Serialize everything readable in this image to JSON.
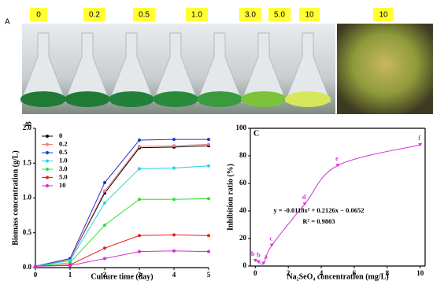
{
  "photo_panel": {
    "label": "A",
    "flask_labels": [
      "0",
      "0.2",
      "0.5",
      "1.0",
      "3.0",
      "5.0",
      "10",
      "10"
    ]
  },
  "chart_data": [
    {
      "type": "line",
      "panel_label": "B",
      "x_label": "Culture time (day)",
      "y_label": "Biomass concentration (g/L)",
      "x": [
        0,
        1,
        2,
        3,
        4,
        5
      ],
      "xlim": [
        0,
        5
      ],
      "xticks": [
        0,
        1,
        2,
        3,
        4,
        5
      ],
      "ylim": [
        0,
        2
      ],
      "yticks": [
        {
          "value": 0,
          "label": "0.0"
        },
        {
          "value": 0.5,
          "label": "0.5"
        },
        {
          "value": 1,
          "label": "1.0"
        },
        {
          "value": 1.5,
          "label": "1.5"
        },
        {
          "value": 2,
          "label": "2.0"
        }
      ],
      "series": [
        {
          "name": "0",
          "color": "#000000",
          "values": [
            0.02,
            0.12,
            1.07,
            1.72,
            1.73,
            1.75
          ]
        },
        {
          "name": "0.2",
          "color": "#f08080",
          "values": [
            0.02,
            0.12,
            1.1,
            1.74,
            1.75,
            1.77
          ]
        },
        {
          "name": "0.5",
          "color": "#2035d0",
          "values": [
            0.02,
            0.13,
            1.22,
            1.83,
            1.84,
            1.84
          ]
        },
        {
          "name": "1.0",
          "color": "#22d3e6",
          "values": [
            0.02,
            0.1,
            0.93,
            1.42,
            1.43,
            1.46
          ]
        },
        {
          "name": "3.0",
          "color": "#2ee02e",
          "values": [
            0.02,
            0.07,
            0.61,
            0.98,
            0.98,
            0.99
          ]
        },
        {
          "name": "5.0",
          "color": "#e8201c",
          "values": [
            0.02,
            0.04,
            0.28,
            0.46,
            0.47,
            0.46
          ]
        },
        {
          "name": "10",
          "color": "#d22ed2",
          "values": [
            0.02,
            0.03,
            0.13,
            0.23,
            0.24,
            0.23
          ]
        }
      ]
    },
    {
      "type": "scatter",
      "panel_label": "C",
      "x_label": "Na₂SeO₄ concentration (mg/L)",
      "y_label": "Inhibition ratio (%)",
      "x": [
        0,
        0.2,
        0.5,
        1.0,
        3.0,
        5.0,
        10
      ],
      "values": [
        4,
        3,
        2,
        15,
        45,
        73,
        88
      ],
      "point_labels": [
        "b",
        "b",
        "a",
        "c",
        "d",
        "e",
        "f"
      ],
      "color": "#d633d6",
      "xlim": [
        -0.3,
        10.3
      ],
      "xticks": [
        0,
        2,
        4,
        6,
        8,
        10
      ],
      "ylim": [
        0,
        100
      ],
      "yticks": [
        0,
        20,
        40,
        60,
        80,
        100
      ],
      "equation": "y = -0.0118x² + 0.2126x − 0.0652",
      "r_squared": "R² = 0.9803"
    }
  ]
}
